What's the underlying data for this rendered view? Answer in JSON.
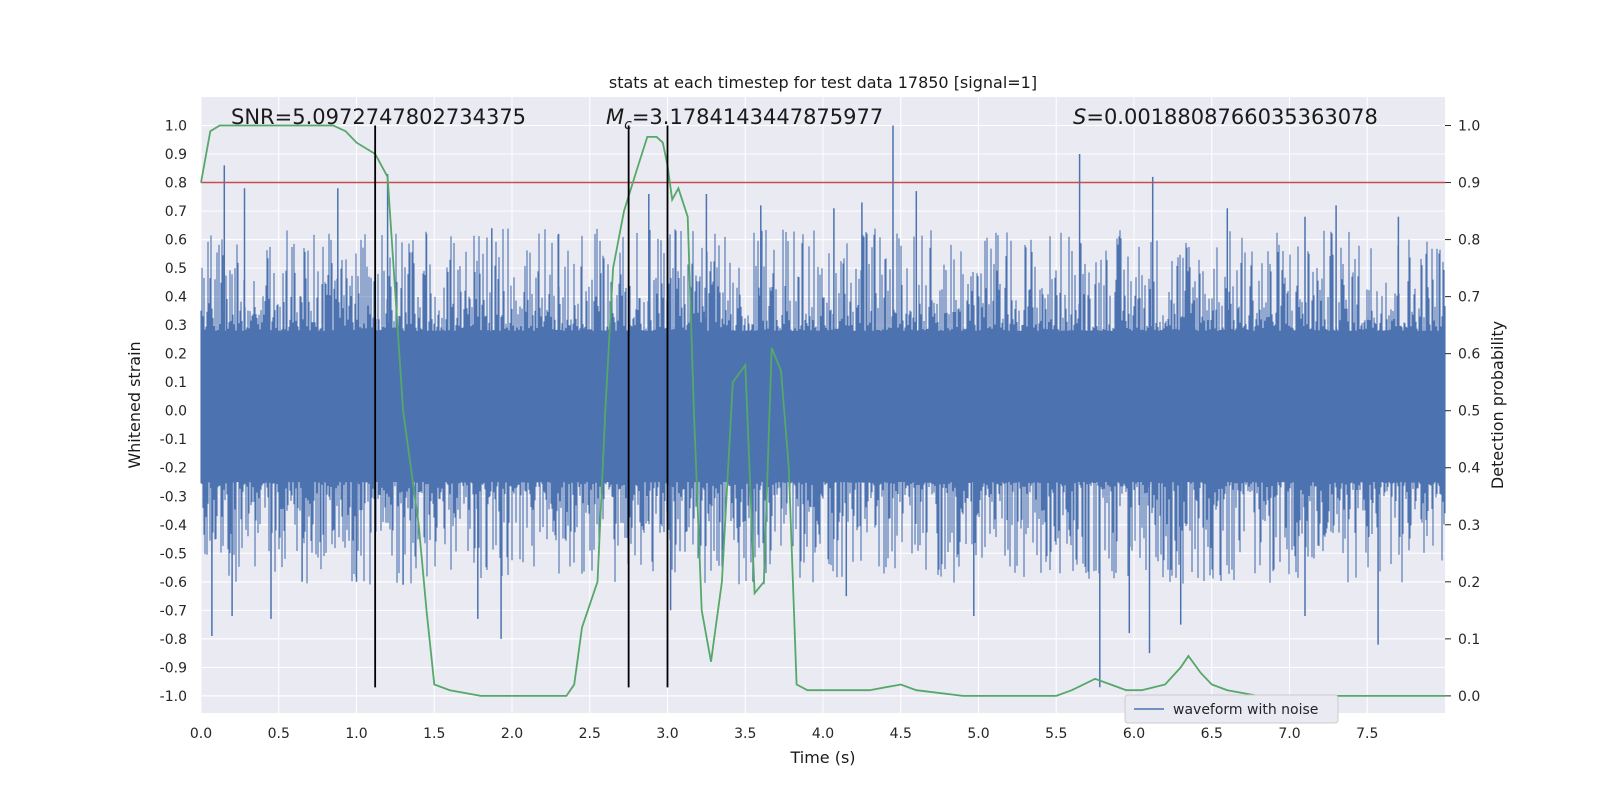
{
  "chart_data": {
    "type": "line",
    "title": "stats at each timestep for test data 17850 [signal=1]",
    "xlabel": "Time (s)",
    "ylabel_left": "Whitened strain",
    "ylabel_right": "Detection probability",
    "xlim": [
      0.0,
      8.0
    ],
    "ylim_left": [
      -1.06,
      1.1
    ],
    "ylim_right": [
      -0.03,
      1.05
    ],
    "x_ticks": [
      "0.0",
      "0.5",
      "1.0",
      "1.5",
      "2.0",
      "2.5",
      "3.0",
      "3.5",
      "4.0",
      "4.5",
      "5.0",
      "5.5",
      "6.0",
      "6.5",
      "7.0",
      "7.5"
    ],
    "y_left_ticks": [
      "1.0",
      "0.9",
      "0.8",
      "0.7",
      "0.6",
      "0.5",
      "0.4",
      "0.3",
      "0.2",
      "0.1",
      "0.0",
      "-0.1",
      "-0.2",
      "-0.3",
      "-0.4",
      "-0.5",
      "-0.6",
      "-0.7",
      "-0.8",
      "-0.9",
      "-1.0"
    ],
    "y_right_ticks": [
      "1.0",
      "0.9",
      "0.8",
      "0.7",
      "0.6",
      "0.5",
      "0.4",
      "0.3",
      "0.2",
      "0.1",
      "0.0"
    ],
    "grid": true,
    "annotations": {
      "snr": "SNR=5.0972747802734375",
      "mc_symbol": "M",
      "mc_sub": "c",
      "mc_value": "=3.1784143447875977",
      "s_symbol": "S",
      "s_value": "=0.0018808766035363078"
    },
    "threshold": {
      "value": 0.8,
      "color": "#c44e52"
    },
    "vertical_lines": [
      1.12,
      2.75,
      3.0
    ],
    "vertical_line_range": [
      -0.97,
      1.0
    ],
    "legend": {
      "entries": [
        "waveform with noise"
      ],
      "placement": "lower-right"
    },
    "series": [
      {
        "name": "waveform with noise",
        "axis": "left",
        "color": "#4c72b0",
        "envelope_core": [
          -0.18,
          0.21
        ],
        "spikes_high": [
          [
            0.15,
            0.86
          ],
          [
            0.28,
            0.78
          ],
          [
            0.88,
            0.78
          ],
          [
            1.2,
            0.83
          ],
          [
            1.45,
            0.62
          ],
          [
            1.87,
            0.64
          ],
          [
            2.3,
            0.62
          ],
          [
            2.88,
            0.76
          ],
          [
            3.25,
            0.76
          ],
          [
            3.6,
            0.72
          ],
          [
            4.07,
            0.71
          ],
          [
            4.25,
            0.73
          ],
          [
            4.45,
            1.0
          ],
          [
            4.6,
            0.77
          ],
          [
            5.65,
            0.9
          ],
          [
            6.12,
            0.82
          ],
          [
            6.6,
            0.71
          ],
          [
            7.1,
            0.68
          ],
          [
            7.3,
            0.72
          ],
          [
            7.7,
            0.68
          ]
        ],
        "spikes_low": [
          [
            0.07,
            -0.79
          ],
          [
            0.2,
            -0.72
          ],
          [
            0.45,
            -0.73
          ],
          [
            0.65,
            -0.6
          ],
          [
            1.0,
            -0.6
          ],
          [
            1.3,
            -0.61
          ],
          [
            1.78,
            -0.73
          ],
          [
            1.93,
            -0.8
          ],
          [
            3.02,
            -0.7
          ],
          [
            3.55,
            -0.6
          ],
          [
            4.15,
            -0.65
          ],
          [
            4.97,
            -0.72
          ],
          [
            5.78,
            -0.97
          ],
          [
            5.97,
            -0.78
          ],
          [
            6.1,
            -0.85
          ],
          [
            6.3,
            -0.75
          ],
          [
            7.1,
            -0.72
          ],
          [
            7.57,
            -0.82
          ]
        ]
      },
      {
        "name": "",
        "axis": "right",
        "color": "#55a868",
        "x": [
          0.0,
          0.06,
          0.12,
          0.3,
          0.6,
          0.85,
          0.93,
          1.0,
          1.12,
          1.2,
          1.3,
          1.4,
          1.45,
          1.5,
          1.6,
          1.8,
          2.0,
          2.2,
          2.35,
          2.4,
          2.45,
          2.55,
          2.6,
          2.65,
          2.72,
          2.8,
          2.87,
          2.93,
          2.97,
          3.0,
          3.03,
          3.07,
          3.13,
          3.17,
          3.22,
          3.28,
          3.35,
          3.42,
          3.5,
          3.56,
          3.62,
          3.67,
          3.73,
          3.78,
          3.83,
          3.9,
          4.0,
          4.15,
          4.3,
          4.5,
          4.6,
          4.9,
          5.2,
          5.5,
          5.6,
          5.75,
          5.85,
          5.95,
          6.05,
          6.2,
          6.3,
          6.35,
          6.43,
          6.5,
          6.6,
          6.8,
          7.0,
          7.5,
          7.6,
          8.0
        ],
        "y": [
          0.9,
          0.99,
          1.0,
          1.0,
          1.0,
          1.0,
          0.99,
          0.97,
          0.95,
          0.91,
          0.5,
          0.3,
          0.15,
          0.02,
          0.01,
          0.0,
          0.0,
          0.0,
          0.0,
          0.02,
          0.12,
          0.2,
          0.5,
          0.75,
          0.85,
          0.92,
          0.98,
          0.98,
          0.97,
          0.93,
          0.87,
          0.89,
          0.84,
          0.5,
          0.15,
          0.06,
          0.2,
          0.55,
          0.58,
          0.18,
          0.2,
          0.61,
          0.57,
          0.4,
          0.02,
          0.01,
          0.01,
          0.01,
          0.01,
          0.02,
          0.01,
          0.0,
          0.0,
          0.0,
          0.01,
          0.03,
          0.02,
          0.01,
          0.01,
          0.02,
          0.05,
          0.07,
          0.04,
          0.02,
          0.01,
          0.0,
          0.0,
          0.0,
          0.0,
          0.0
        ]
      }
    ]
  }
}
